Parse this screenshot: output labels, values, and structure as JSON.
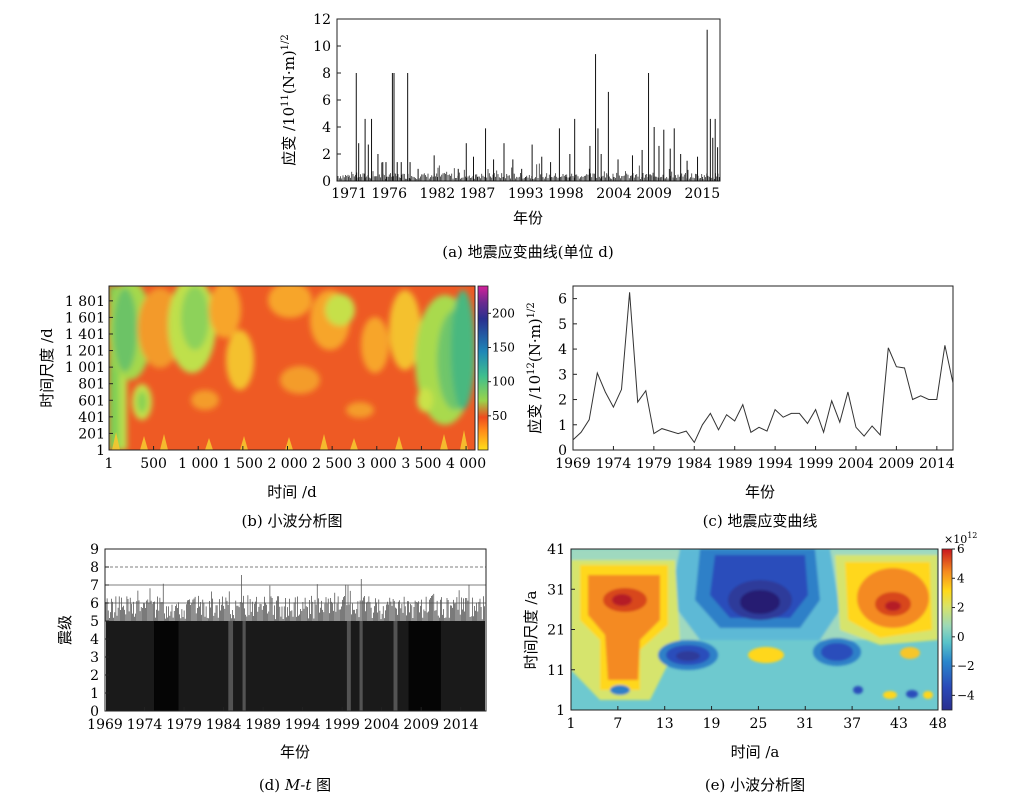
{
  "chart_data": [
    {
      "id": "a",
      "type": "bar",
      "caption": "(a) 地震应变曲线(单位 d)",
      "xlabel": "年份",
      "ylabel_main": "应变 /10",
      "ylabel_exp": "11",
      "ylabel_unit": "(N·m)",
      "ylabel_unit_exp": "1/2",
      "xlim": [
        1969.5,
        2017.2
      ],
      "ylim": [
        0,
        12
      ],
      "yticks": [
        "0",
        "2",
        "4",
        "6",
        "8",
        "10",
        "12"
      ],
      "xticks": [
        "1971",
        "1976",
        "1982",
        "1987",
        "1993",
        "1998",
        "2004",
        "2009",
        "2015"
      ],
      "spikes": [
        {
          "x": 1971.9,
          "y": 8.0
        },
        {
          "x": 1972.2,
          "y": 2.8
        },
        {
          "x": 1973.0,
          "y": 4.6
        },
        {
          "x": 1973.4,
          "y": 2.7
        },
        {
          "x": 1973.8,
          "y": 4.6
        },
        {
          "x": 1974.6,
          "y": 2.0
        },
        {
          "x": 1975.2,
          "y": 1.4
        },
        {
          "x": 1975.6,
          "y": 1.4
        },
        {
          "x": 1976.4,
          "y": 8.0
        },
        {
          "x": 1976.6,
          "y": 8.0
        },
        {
          "x": 1977.0,
          "y": 1.4
        },
        {
          "x": 1977.5,
          "y": 1.4
        },
        {
          "x": 1978.3,
          "y": 8.0
        },
        {
          "x": 1978.6,
          "y": 1.4
        },
        {
          "x": 1979.6,
          "y": 0.9
        },
        {
          "x": 1981.6,
          "y": 1.9
        },
        {
          "x": 1984.6,
          "y": 0.9
        },
        {
          "x": 1985.6,
          "y": 2.8
        },
        {
          "x": 1986.5,
          "y": 1.8
        },
        {
          "x": 1988.0,
          "y": 3.9
        },
        {
          "x": 1989.0,
          "y": 1.6
        },
        {
          "x": 1990.3,
          "y": 2.8
        },
        {
          "x": 1991.4,
          "y": 1.6
        },
        {
          "x": 1992.5,
          "y": 0.9
        },
        {
          "x": 1993.8,
          "y": 2.7
        },
        {
          "x": 1995.0,
          "y": 1.8
        },
        {
          "x": 1996.1,
          "y": 1.4
        },
        {
          "x": 1997.2,
          "y": 3.9
        },
        {
          "x": 1998.5,
          "y": 2.0
        },
        {
          "x": 1999.1,
          "y": 4.6
        },
        {
          "x": 2001.0,
          "y": 2.6
        },
        {
          "x": 2001.7,
          "y": 9.4
        },
        {
          "x": 2002.0,
          "y": 3.9
        },
        {
          "x": 2002.4,
          "y": 2.0
        },
        {
          "x": 2003.3,
          "y": 6.6
        },
        {
          "x": 2004.5,
          "y": 1.6
        },
        {
          "x": 2006.3,
          "y": 1.9
        },
        {
          "x": 2007.5,
          "y": 2.3
        },
        {
          "x": 2008.3,
          "y": 8.0
        },
        {
          "x": 2009.0,
          "y": 4.0
        },
        {
          "x": 2009.6,
          "y": 2.6
        },
        {
          "x": 2010.2,
          "y": 3.8
        },
        {
          "x": 2011.0,
          "y": 2.4
        },
        {
          "x": 2011.5,
          "y": 3.9
        },
        {
          "x": 2012.3,
          "y": 2.0
        },
        {
          "x": 2013.1,
          "y": 1.5
        },
        {
          "x": 2014.4,
          "y": 1.8
        },
        {
          "x": 2015.6,
          "y": 11.2
        },
        {
          "x": 2016.0,
          "y": 4.6
        },
        {
          "x": 2016.3,
          "y": 3.2
        },
        {
          "x": 2016.6,
          "y": 4.6
        },
        {
          "x": 2016.9,
          "y": 2.5
        }
      ]
    },
    {
      "id": "b",
      "type": "heatmap",
      "caption": "(b) 小波分析图",
      "xlabel": "时间 /d",
      "ylabel": "时间尺度 /d",
      "xlim": [
        1,
        4100
      ],
      "ylim": [
        1,
        1980
      ],
      "xticks": [
        {
          "v": 1,
          "t": "1"
        },
        {
          "v": 500,
          "t": "500"
        },
        {
          "v": 1000,
          "t": "1 000"
        },
        {
          "v": 1500,
          "t": "1 500"
        },
        {
          "v": 2000,
          "t": "2 000"
        },
        {
          "v": 2500,
          "t": "2 500"
        },
        {
          "v": 3000,
          "t": "3 000"
        },
        {
          "v": 3500,
          "t": "3 500"
        },
        {
          "v": 4000,
          "t": "4 000"
        }
      ],
      "yticks": [
        {
          "v": 1,
          "t": "1"
        },
        {
          "v": 201,
          "t": "201"
        },
        {
          "v": 401,
          "t": "401"
        },
        {
          "v": 601,
          "t": "601"
        },
        {
          "v": 801,
          "t": "801"
        },
        {
          "v": 1001,
          "t": "1 001"
        },
        {
          "v": 1201,
          "t": "1 201"
        },
        {
          "v": 1401,
          "t": "1 401"
        },
        {
          "v": 1601,
          "t": "1 601"
        },
        {
          "v": 1801,
          "t": "1 801"
        }
      ],
      "colorbar": {
        "min": 0,
        "max": 240,
        "ticks": [
          "50",
          "100",
          "150",
          "200"
        ],
        "tick_values": [
          50,
          100,
          150,
          200
        ]
      }
    },
    {
      "id": "c",
      "type": "line",
      "caption": "(c) 地震应变曲线",
      "xlabel": "年份",
      "ylabel_main": "应变 /10",
      "ylabel_exp": "12",
      "ylabel_unit": "(N·m)",
      "ylabel_unit_exp": "1/2",
      "xlim": [
        1969,
        2016
      ],
      "ylim": [
        0,
        6.5
      ],
      "yticks": [
        "0",
        "1",
        "2",
        "3",
        "4",
        "5",
        "6"
      ],
      "xticks": [
        "1969",
        "1974",
        "1979",
        "1984",
        "1989",
        "1994",
        "1999",
        "2004",
        "2009",
        "2014"
      ],
      "x": [
        1969,
        1970,
        1971,
        1972,
        1973,
        1974,
        1975,
        1976,
        1977,
        1978,
        1979,
        1980,
        1981,
        1982,
        1983,
        1984,
        1985,
        1986,
        1987,
        1988,
        1989,
        1990,
        1991,
        1992,
        1993,
        1994,
        1995,
        1996,
        1997,
        1998,
        1999,
        2000,
        2001,
        2002,
        2003,
        2004,
        2005,
        2006,
        2007,
        2008,
        2009,
        2010,
        2011,
        2012,
        2013,
        2014,
        2015,
        2016
      ],
      "y": [
        0.4,
        0.7,
        1.2,
        3.05,
        2.3,
        1.7,
        2.4,
        6.25,
        1.9,
        2.35,
        0.65,
        0.85,
        0.75,
        0.65,
        0.75,
        0.3,
        1.0,
        1.45,
        0.8,
        1.4,
        1.15,
        1.8,
        0.7,
        0.9,
        0.75,
        1.6,
        1.3,
        1.45,
        1.45,
        1.05,
        1.6,
        0.7,
        1.95,
        1.1,
        2.3,
        0.9,
        0.55,
        0.95,
        0.6,
        4.05,
        3.3,
        3.25,
        2.0,
        2.15,
        2.0,
        2.0,
        4.15,
        2.65
      ]
    },
    {
      "id": "d",
      "type": "bar",
      "caption_main": "(d) ",
      "caption_italic": "M-t",
      "caption_tail": " 图",
      "xlabel": "年份",
      "ylabel": "震级",
      "xlim": [
        1969,
        2017.2
      ],
      "ylim": [
        0,
        9
      ],
      "yticks": [
        "0",
        "1",
        "2",
        "3",
        "4",
        "5",
        "6",
        "7",
        "8",
        "9"
      ],
      "xticks": [
        "1969",
        "1974",
        "1979",
        "1984",
        "1989",
        "1994",
        "1999",
        "2004",
        "2009",
        "2014"
      ],
      "reference_lines": [
        6,
        7,
        8
      ]
    },
    {
      "id": "e",
      "type": "heatmap",
      "caption": "(e) 小波分析图",
      "xlabel": "时间 /a",
      "ylabel": "时间尺度 /a",
      "xlim": [
        1,
        48
      ],
      "ylim": [
        1,
        41
      ],
      "xticks": [
        "1",
        "7",
        "13",
        "19",
        "25",
        "31",
        "37",
        "43",
        "48"
      ],
      "yticks": [
        "1",
        "11",
        "21",
        "31",
        "41"
      ],
      "colorbar": {
        "min": -5,
        "max": 6,
        "ticks": [
          "−4",
          "−2",
          "0",
          "2",
          "4",
          "6"
        ],
        "tick_values": [
          -4,
          -2,
          0,
          2,
          4,
          6
        ],
        "scale_label": "×10",
        "scale_exp": "12"
      }
    }
  ]
}
